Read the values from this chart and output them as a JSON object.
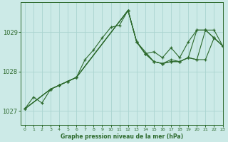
{
  "title": "Graphe pression niveau de la mer (hPa)",
  "bg_color": "#cceae7",
  "grid_color": "#aad4d0",
  "line_color": "#2d6a2d",
  "xlim": [
    -0.5,
    23
  ],
  "ylim": [
    1026.65,
    1029.75
  ],
  "yticks": [
    1027,
    1028,
    1029
  ],
  "xticks": [
    0,
    1,
    2,
    3,
    4,
    5,
    6,
    7,
    8,
    9,
    10,
    11,
    12,
    13,
    14,
    15,
    16,
    17,
    18,
    19,
    20,
    21,
    22,
    23
  ],
  "series": [
    {
      "x": [
        0,
        1,
        2,
        3,
        4,
        5,
        6,
        7,
        8,
        9,
        10,
        11,
        12,
        13,
        14,
        15,
        16,
        17,
        18,
        19,
        20,
        21,
        22,
        23
      ],
      "y": [
        1027.05,
        1027.35,
        1027.2,
        1027.55,
        1027.65,
        1027.75,
        1027.85,
        1028.3,
        1028.55,
        1028.85,
        1029.12,
        1029.17,
        1029.55,
        1028.75,
        1028.45,
        1028.25,
        1028.2,
        1028.25,
        1028.25,
        1028.35,
        1029.05,
        1029.05,
        1028.85,
        1028.65
      ]
    },
    {
      "x": [
        0,
        3,
        4,
        5,
        6,
        12,
        13,
        14,
        15,
        16,
        17,
        18,
        19,
        20,
        21,
        22,
        23
      ],
      "y": [
        1027.05,
        1027.55,
        1027.65,
        1027.75,
        1027.85,
        1029.55,
        1028.75,
        1028.45,
        1028.5,
        1028.35,
        1028.6,
        1028.35,
        1028.75,
        1029.05,
        1029.05,
        1029.05,
        1028.65
      ]
    },
    {
      "x": [
        0,
        3,
        4,
        5,
        6,
        12,
        13,
        14,
        15,
        16,
        17,
        18,
        19,
        20,
        21,
        22,
        23
      ],
      "y": [
        1027.05,
        1027.55,
        1027.65,
        1027.75,
        1027.85,
        1029.55,
        1028.75,
        1028.45,
        1028.25,
        1028.2,
        1028.3,
        1028.25,
        1028.35,
        1028.3,
        1029.05,
        1028.85,
        1028.65
      ]
    },
    {
      "x": [
        0,
        3,
        5,
        6,
        12,
        13,
        15,
        16,
        17,
        18,
        19,
        20,
        21,
        22,
        23
      ],
      "y": [
        1027.05,
        1027.55,
        1027.75,
        1027.85,
        1029.55,
        1028.75,
        1028.25,
        1028.2,
        1028.25,
        1028.25,
        1028.35,
        1028.3,
        1028.3,
        1028.85,
        1028.65
      ]
    }
  ]
}
